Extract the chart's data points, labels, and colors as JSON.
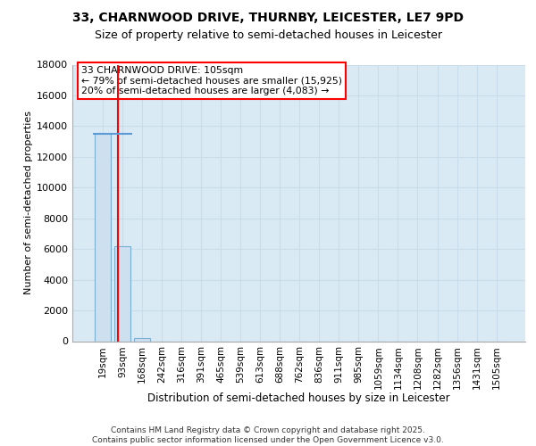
{
  "title": "33, CHARNWOOD DRIVE, THURNBY, LEICESTER, LE7 9PD",
  "subtitle": "Size of property relative to semi-detached houses in Leicester",
  "xlabel": "Distribution of semi-detached houses by size in Leicester",
  "ylabel": "Number of semi-detached properties",
  "bar_categories": [
    "19sqm",
    "93sqm",
    "168sqm",
    "242sqm",
    "316sqm",
    "391sqm",
    "465sqm",
    "539sqm",
    "613sqm",
    "688sqm",
    "762sqm",
    "836sqm",
    "911sqm",
    "985sqm",
    "1059sqm",
    "1134sqm",
    "1208sqm",
    "1282sqm",
    "1356sqm",
    "1431sqm",
    "1505sqm"
  ],
  "bar_values": [
    13500,
    6200,
    200,
    0,
    0,
    0,
    0,
    0,
    0,
    0,
    0,
    0,
    0,
    0,
    0,
    0,
    0,
    0,
    0,
    0,
    0
  ],
  "bar_color": "#cce0f0",
  "bar_edge_color": "#7ab0d4",
  "grid_color": "#c8dcea",
  "background_color": "#daeaf5",
  "property_line_x": 0.78,
  "property_sqm": 105,
  "property_label": "33 CHARNWOOD DRIVE: 105sqm",
  "annotation_line1": "← 79% of semi-detached houses are smaller (15,925)",
  "annotation_line2": "20% of semi-detached houses are larger (4,083) →",
  "ylim": [
    0,
    18000
  ],
  "yticks": [
    0,
    2000,
    4000,
    6000,
    8000,
    10000,
    12000,
    14000,
    16000,
    18000
  ],
  "footer_line1": "Contains HM Land Registry data © Crown copyright and database right 2025.",
  "footer_line2": "Contains public sector information licensed under the Open Government Licence v3.0.",
  "title_fontsize": 10,
  "subtitle_fontsize": 9,
  "blue_line_y": 13500
}
